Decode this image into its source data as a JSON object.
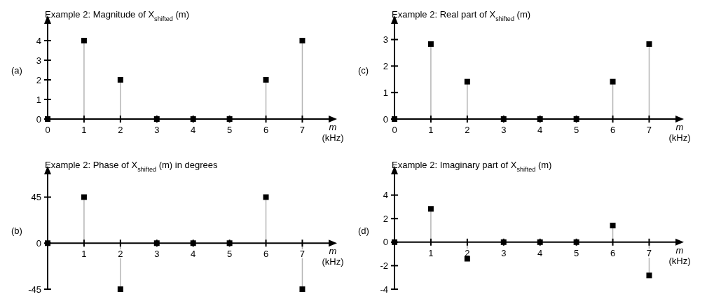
{
  "chart_data": [
    {
      "type": "lollipop",
      "title": "Example 2:  Magnitude of X$_{shifted}$ (m)",
      "xlabel": "m (kHz)",
      "annotations": [
        "(a)"
      ],
      "x": [
        0,
        1,
        2,
        3,
        4,
        5,
        6,
        7
      ],
      "values": [
        0,
        4,
        2,
        0,
        0,
        0,
        2,
        4
      ],
      "color": "#000000",
      "xlim": [
        0,
        7.8
      ],
      "xticks": [
        0,
        1,
        2,
        3,
        4,
        5,
        6,
        7
      ],
      "ylim": [
        0,
        5
      ],
      "yticks": [
        0,
        1,
        2,
        3,
        4
      ],
      "marker": "square"
    },
    {
      "type": "lollipop",
      "title": "Example 2:  Real part of X$_{shifted}$ (m)",
      "xlabel": "m (kHz)",
      "annotations": [
        "(c)"
      ],
      "x": [
        0,
        1,
        2,
        3,
        4,
        5,
        6,
        7
      ],
      "values": [
        0,
        2.83,
        1.41,
        0,
        0,
        0,
        1.41,
        2.83
      ],
      "color": "#000000",
      "xlim": [
        0,
        7.8
      ],
      "xticks": [
        0,
        1,
        2,
        3,
        4,
        5,
        6,
        7
      ],
      "ylim": [
        0,
        3.7
      ],
      "yticks": [
        0,
        1,
        2,
        3
      ],
      "marker": "square"
    },
    {
      "type": "lollipop",
      "title": "Example 2:  Phase of X$_{shifted}$ (m) in degrees",
      "xlabel": "m (kHz)",
      "annotations": [
        "(b)"
      ],
      "x": [
        0,
        1,
        2,
        3,
        4,
        5,
        6,
        7
      ],
      "values": [
        0,
        45,
        -45,
        0,
        0,
        0,
        45,
        -45
      ],
      "color": "#000000",
      "xlim": [
        0,
        7.8
      ],
      "xticks": [
        1,
        2,
        3,
        4,
        5,
        6,
        7
      ],
      "ylim": [
        -45,
        70
      ],
      "yticks": [
        -45,
        0,
        45
      ],
      "marker": "square"
    },
    {
      "type": "lollipop",
      "title": "Example 2:  Imaginary part of X$_{shifted}$ (m)",
      "xlabel": "m (kHz)",
      "annotations": [
        "(d)"
      ],
      "x": [
        0,
        1,
        2,
        3,
        4,
        5,
        6,
        7
      ],
      "values": [
        0,
        2.83,
        -1.41,
        0,
        0,
        0,
        1.41,
        -2.83
      ],
      "color": "#000000",
      "xlim": [
        0,
        7.8
      ],
      "xticks": [
        1,
        2,
        3,
        4,
        5,
        6,
        7
      ],
      "ylim": [
        -4,
        6
      ],
      "yticks": [
        -4,
        -2,
        0,
        2,
        4
      ],
      "marker": "square"
    }
  ]
}
